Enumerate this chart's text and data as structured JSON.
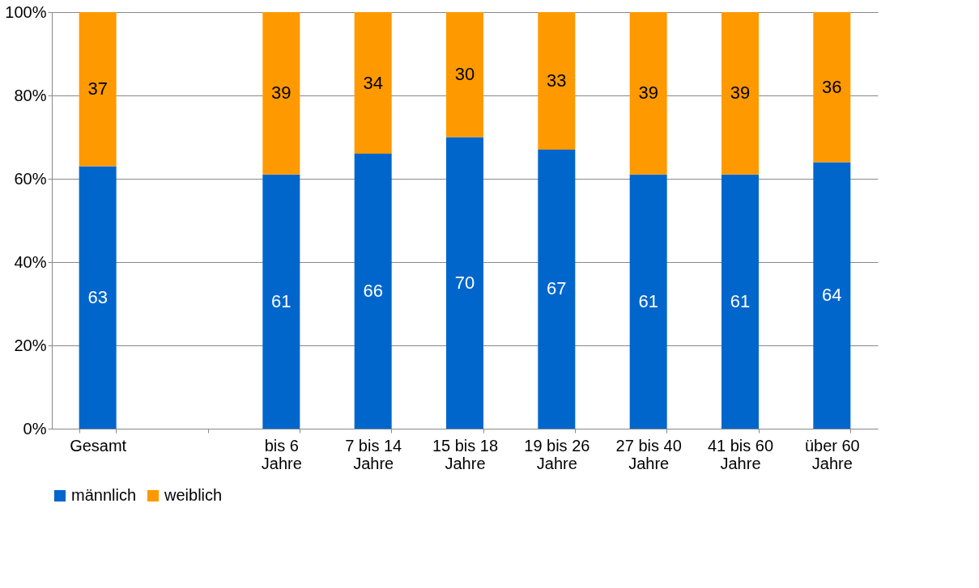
{
  "chart_data": {
    "type": "bar",
    "stacked": true,
    "categories": [
      "Gesamt",
      null,
      "bis 6 Jahre",
      "7 bis 14 Jahre",
      "15 bis 18 Jahre",
      "19 bis 26 Jahre",
      "27 bis 40 Jahre",
      "41 bis 60 Jahre",
      "über 60 Jahre"
    ],
    "series": [
      {
        "name": "männlich",
        "color": "#0066cc",
        "values": [
          63,
          null,
          61,
          66,
          70,
          67,
          61,
          61,
          64
        ]
      },
      {
        "name": "weiblich",
        "color": "#ff9900",
        "values": [
          37,
          null,
          39,
          34,
          30,
          33,
          39,
          39,
          36
        ]
      }
    ],
    "ylim": [
      0,
      100
    ],
    "yticks": [
      {
        "value": 0,
        "label": "0%"
      },
      {
        "value": 20,
        "label": "20%"
      },
      {
        "value": 40,
        "label": "40%"
      },
      {
        "value": 60,
        "label": "60%"
      },
      {
        "value": 80,
        "label": "80%"
      },
      {
        "value": 100,
        "label": "100%"
      }
    ],
    "grid": "y",
    "legend": "bottom",
    "data_labels": true
  }
}
